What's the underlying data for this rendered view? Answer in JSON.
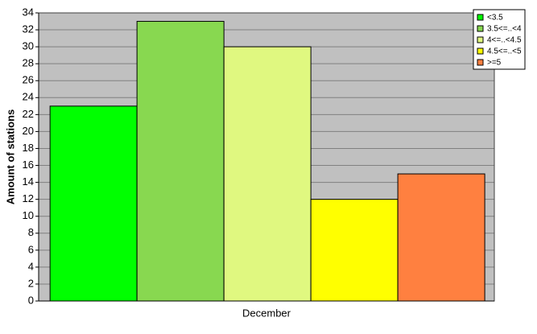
{
  "chart_data": {
    "type": "bar",
    "y_label": "Amount of stations",
    "categories": [
      "December"
    ],
    "series": [
      {
        "name": "<3.5",
        "color": "#00ff00",
        "values": [
          23
        ]
      },
      {
        "name": "3.5<=..<4",
        "color": "#88d850",
        "values": [
          33
        ]
      },
      {
        "name": "4<=..<4.5",
        "color": "#e0f880",
        "values": [
          30
        ]
      },
      {
        "name": "4.5<=..<5",
        "color": "#ffff00",
        "values": [
          12
        ]
      },
      {
        "name": ">=5",
        "color": "#ff8040",
        "values": [
          15
        ]
      }
    ],
    "ylim": [
      0,
      34
    ],
    "yticks": [
      0,
      2,
      4,
      6,
      8,
      10,
      12,
      14,
      16,
      18,
      20,
      22,
      24,
      26,
      28,
      30,
      32,
      34
    ],
    "grid": true,
    "legend": "upper right"
  }
}
